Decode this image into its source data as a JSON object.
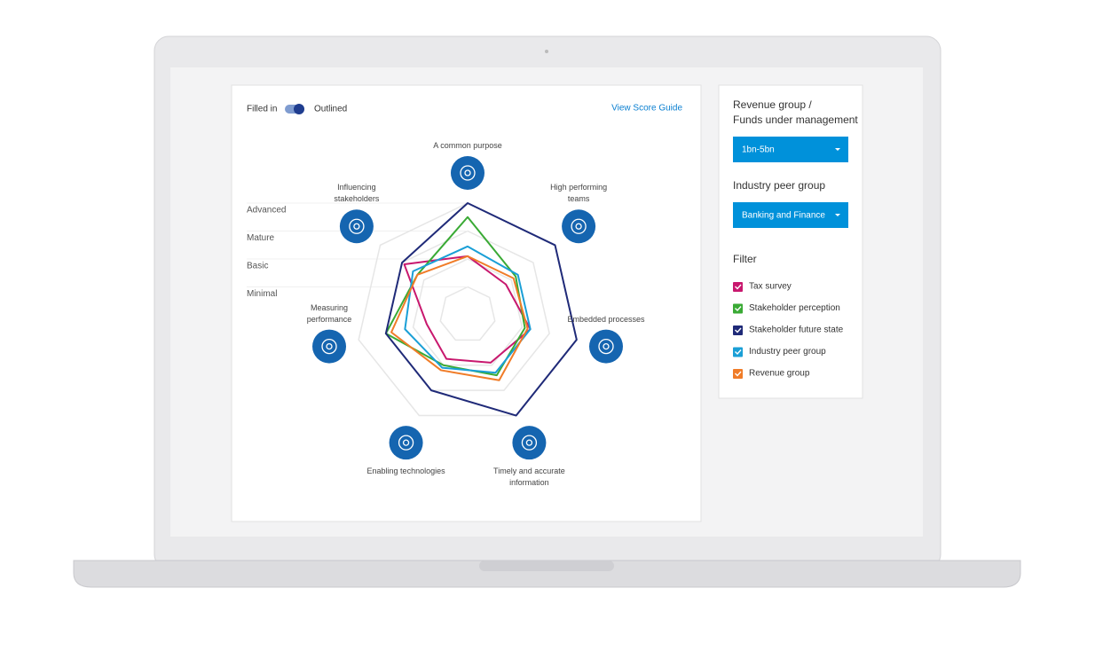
{
  "toggle": {
    "left": "Filled in",
    "right": "Outlined"
  },
  "link": "View Score Guide",
  "sidebar": {
    "revenue_label": "Revenue group / Funds under management",
    "revenue_value": "1bn-5bn",
    "peer_label": "Industry peer group",
    "peer_value": "Banking and Finance",
    "filter_label": "Filter"
  },
  "chart_data": {
    "type": "radar",
    "categories": [
      "A common purpose",
      "High performing teams",
      "Embedded processes",
      "Timely and accurate information",
      "Enabling technologies",
      "Measuring performance",
      "Influencing stakeholders"
    ],
    "ylim": [
      0,
      4
    ],
    "yticks": [
      {
        "value": 1,
        "label": "Minimal"
      },
      {
        "value": 2,
        "label": "Basic"
      },
      {
        "value": 3,
        "label": "Mature"
      },
      {
        "value": 4,
        "label": "Advanced"
      }
    ],
    "series": [
      {
        "name": "Tax survey",
        "color": "#c8186e",
        "values": [
          2.1,
          1.75,
          2.3,
          1.9,
          1.75,
          1.5,
          2.9
        ]
      },
      {
        "name": "Stakeholder perception",
        "color": "#3aaa35",
        "values": [
          3.5,
          2.2,
          2.1,
          2.4,
          2,
          3,
          2.3
        ]
      },
      {
        "name": "Stakeholder future state",
        "color": "#1f2a78",
        "values": [
          4,
          4,
          4,
          4,
          3,
          3,
          3
        ]
      },
      {
        "name": "Industry peer group",
        "color": "#1a9fd6",
        "values": [
          2.45,
          2.3,
          2.3,
          2.3,
          2.1,
          2.3,
          2.5
        ]
      },
      {
        "name": "Revenue group",
        "color": "#f07c28",
        "values": [
          2.1,
          2.1,
          2.2,
          2.6,
          2.2,
          2.8,
          2.3
        ]
      }
    ]
  }
}
